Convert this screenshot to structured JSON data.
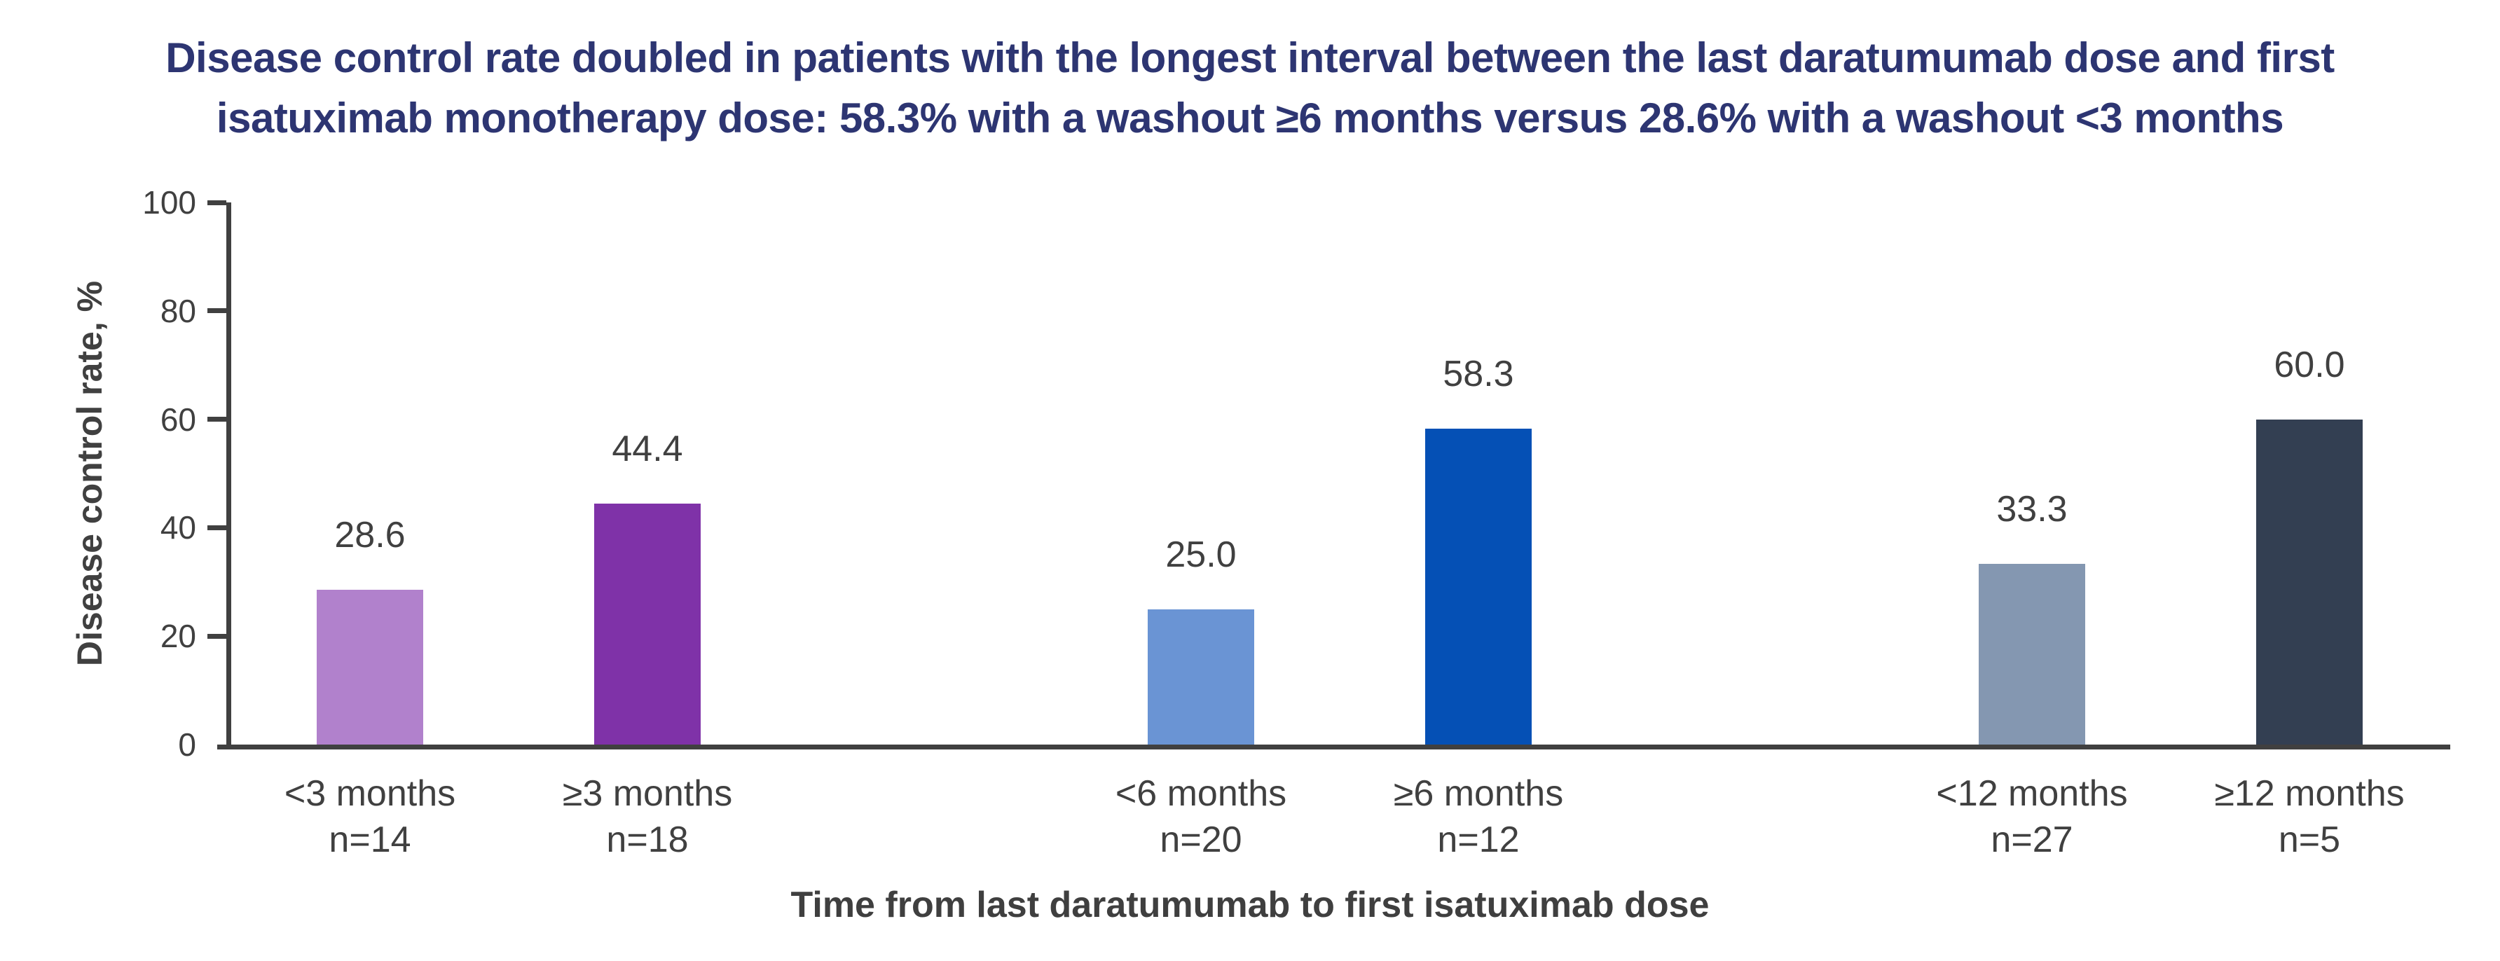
{
  "title": {
    "line1": "Disease control rate doubled in patients with the longest interval between the last daratumumab dose and first",
    "line2": "isatuximab monotherapy dose: 58.3% with a washout ≥6 months versus 28.6% with a washout <3 months"
  },
  "colors": {
    "title_text": "#2D3572",
    "axis_and_labels": "#404040",
    "background": "#FFFFFF"
  },
  "chart_data": {
    "type": "bar",
    "title": "Disease control rate doubled in patients with the longest interval between the last daratumumab dose and first isatuximab monotherapy dose: 58.3% with a washout ≥6 months versus 28.6% with a washout <3 months",
    "ylabel": "Disease control rate, %",
    "xlabel": "Time from last daratumumab to first isatuximab dose",
    "ylim": [
      0,
      100
    ],
    "yticks": [
      "0",
      "20",
      "40",
      "60",
      "80",
      "100"
    ],
    "grid": false,
    "legend": false,
    "categories": [
      "<3 months",
      "≥3 months",
      "<6 months",
      "≥6 months",
      "<12 months",
      "≥12 months"
    ],
    "n_labels": [
      "n=14",
      "n=18",
      "n=20",
      "n=12",
      "n=27",
      "n=5"
    ],
    "values": [
      28.6,
      44.4,
      25.0,
      58.3,
      33.3,
      60.0
    ],
    "groups": [
      {
        "bars": [
          {
            "category": "<3 months",
            "n": "n=14",
            "value": 28.6,
            "value_label": "28.6",
            "color": "#B181CC"
          },
          {
            "category": "≥3 months",
            "n": "n=18",
            "value": 44.4,
            "value_label": "44.4",
            "color": "#7F32A8"
          }
        ]
      },
      {
        "bars": [
          {
            "category": "<6 months",
            "n": "n=20",
            "value": 25.0,
            "value_label": "25.0",
            "color": "#6A94D4"
          },
          {
            "category": "≥6 months",
            "n": "n=12",
            "value": 58.3,
            "value_label": "58.3",
            "color": "#0550B5"
          }
        ]
      },
      {
        "bars": [
          {
            "category": "<12 months",
            "n": "n=27",
            "value": 33.3,
            "value_label": "33.3",
            "color": "#8497B1"
          },
          {
            "category": "≥12 months",
            "n": "n=5",
            "value": 60.0,
            "value_label": "60.0",
            "color": "#333F52"
          }
        ]
      }
    ]
  }
}
